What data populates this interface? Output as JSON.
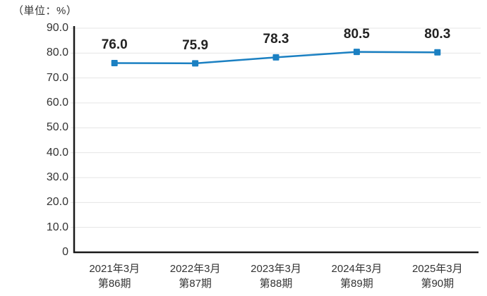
{
  "chart_data": {
    "type": "line",
    "title": "",
    "unit_label": "（単位：%）",
    "categories": [
      [
        "2021年3月",
        "第86期"
      ],
      [
        "2022年3月",
        "第87期"
      ],
      [
        "2023年3月",
        "第88期"
      ],
      [
        "2024年3月",
        "第89期"
      ],
      [
        "2025年3月",
        "第90期"
      ]
    ],
    "values": [
      76.0,
      75.9,
      78.3,
      80.5,
      80.3
    ],
    "data_labels": [
      "76.0",
      "75.9",
      "78.3",
      "80.5",
      "80.3"
    ],
    "ylim": [
      0,
      90
    ],
    "ytick_step": 10,
    "ytick_labels": [
      "0",
      "10.0",
      "20.0",
      "30.0",
      "40.0",
      "50.0",
      "60.0",
      "70.0",
      "80.0",
      "90.0"
    ],
    "grid": true,
    "legend": "none",
    "marker": "square",
    "colors": {
      "line": "#1b80c2",
      "marker": "#1b80c2",
      "grid": "#e5e5e5",
      "axis": "#1a1a1a",
      "tick_label": "#333333",
      "data_label": "#222222"
    }
  }
}
